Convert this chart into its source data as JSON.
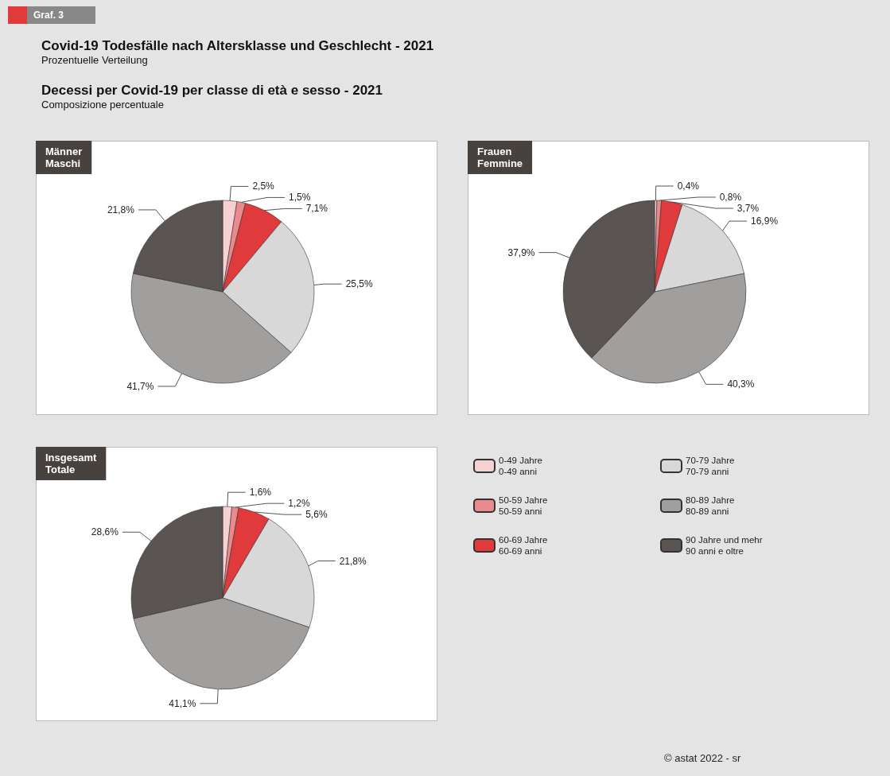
{
  "chart_data": {
    "type": "pie",
    "title": "Covid-19 Todesfälle nach Altersklasse und Geschlecht - 2021",
    "subtitle": "Prozentuelle Verteilung",
    "annotations": [
      "Graf. 3",
      "Decessi per Covid-19 per classe di età e sesso - 2021",
      "Composizione percentuale",
      "© astat 2022 - sr"
    ],
    "categories": [
      "0-49 Jahre\n0-49 anni",
      "50-59 Jahre\n50-59 anni",
      "60-69 Jahre\n60-69 anni",
      "70-79 Jahre\n70-79 anni",
      "80-89 Jahre\n80-89 anni",
      "90 Jahre und mehr\n90 anni e oltre"
    ],
    "colors": [
      "#f6d0d3",
      "#e98a8e",
      "#e03a3c",
      "#d8d8d8",
      "#a19f9d",
      "#5a5553"
    ],
    "series": [
      {
        "name": "Männer\nMaschi",
        "values": [
          2.5,
          1.5,
          7.1,
          25.5,
          41.7,
          21.8
        ],
        "value_labels": [
          "2,5%",
          "1,5%",
          "7,1%",
          "25,5%",
          "41,7%",
          "21,8%"
        ]
      },
      {
        "name": "Frauen\nFemmine",
        "values": [
          0.4,
          0.8,
          3.7,
          16.9,
          40.3,
          37.9
        ],
        "value_labels": [
          "0,4%",
          "0,8%",
          "3,7%",
          "16,9%",
          "40,3%",
          "37,9%"
        ]
      },
      {
        "name": "Insgesamt\nTotale",
        "values": [
          1.6,
          1.2,
          5.6,
          21.8,
          41.1,
          28.6
        ],
        "value_labels": [
          "1,6%",
          "1,2%",
          "5,6%",
          "21,8%",
          "41,1%",
          "28,6%"
        ]
      }
    ],
    "legend": "bottom right"
  }
}
